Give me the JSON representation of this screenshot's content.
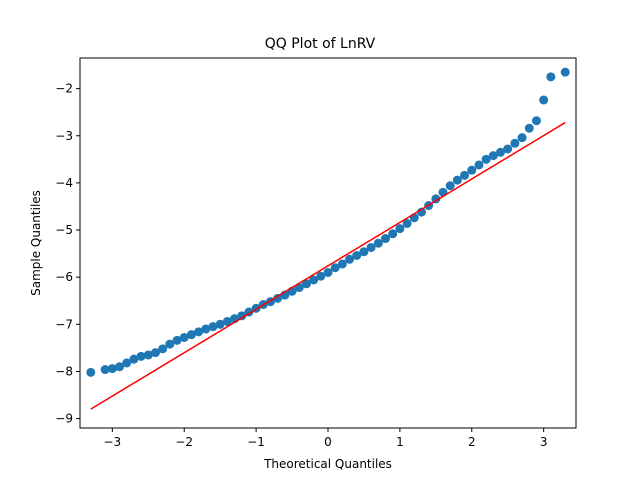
{
  "chart_data": {
    "type": "scatter",
    "title": "QQ Plot of LnRV",
    "xlabel": "Theoretical Quantiles",
    "ylabel": "Sample Quantiles",
    "xlim": [
      -3.45,
      3.45
    ],
    "ylim": [
      -9.2,
      -1.35
    ],
    "x_ticks": [
      -3,
      -2,
      -1,
      0,
      1,
      2,
      3
    ],
    "y_ticks": [
      -9,
      -8,
      -7,
      -6,
      -5,
      -4,
      -3,
      -2
    ],
    "grid": false,
    "colors": {
      "points": "#1f77b4",
      "reference_line": "#ff0000"
    },
    "reference_line": {
      "x": [
        -3.3,
        3.3
      ],
      "y": [
        -8.8,
        -2.72
      ]
    },
    "points": {
      "x": [
        -3.3,
        -3.1,
        -3.0,
        -2.9,
        -2.8,
        -2.7,
        -2.6,
        -2.5,
        -2.4,
        -2.3,
        -2.2,
        -2.1,
        -2.0,
        -1.9,
        -1.8,
        -1.7,
        -1.6,
        -1.5,
        -1.4,
        -1.3,
        -1.2,
        -1.1,
        -1.0,
        -0.9,
        -0.8,
        -0.7,
        -0.6,
        -0.5,
        -0.4,
        -0.3,
        -0.2,
        -0.1,
        0.0,
        0.1,
        0.2,
        0.3,
        0.4,
        0.5,
        0.6,
        0.7,
        0.8,
        0.9,
        1.0,
        1.1,
        1.2,
        1.3,
        1.4,
        1.5,
        1.6,
        1.7,
        1.8,
        1.9,
        2.0,
        2.1,
        2.2,
        2.3,
        2.4,
        2.5,
        2.6,
        2.7,
        2.8,
        2.9,
        3.0,
        3.1,
        3.3
      ],
      "y": [
        -8.02,
        -7.96,
        -7.94,
        -7.9,
        -7.82,
        -7.74,
        -7.68,
        -7.65,
        -7.6,
        -7.52,
        -7.42,
        -7.34,
        -7.28,
        -7.22,
        -7.16,
        -7.1,
        -7.05,
        -7.0,
        -6.94,
        -6.88,
        -6.82,
        -6.74,
        -6.66,
        -6.58,
        -6.52,
        -6.45,
        -6.38,
        -6.3,
        -6.22,
        -6.14,
        -6.06,
        -5.98,
        -5.9,
        -5.8,
        -5.72,
        -5.62,
        -5.54,
        -5.46,
        -5.37,
        -5.28,
        -5.18,
        -5.08,
        -4.97,
        -4.86,
        -4.74,
        -4.62,
        -4.48,
        -4.34,
        -4.2,
        -4.06,
        -3.94,
        -3.84,
        -3.73,
        -3.62,
        -3.5,
        -3.42,
        -3.35,
        -3.28,
        -3.16,
        -3.04,
        -2.84,
        -2.68,
        -2.24,
        -1.75,
        -1.65
      ]
    }
  }
}
